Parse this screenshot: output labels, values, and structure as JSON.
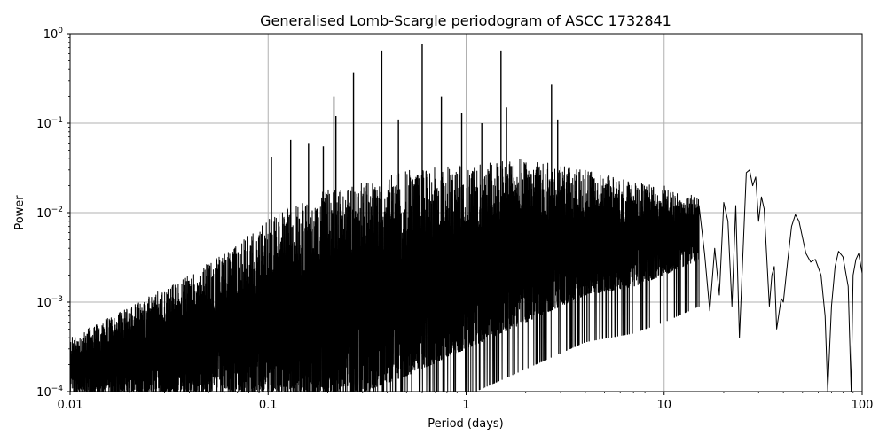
{
  "chart_data": {
    "type": "line",
    "title": "Generalised Lomb-Scargle periodogram of ASCC 1732841",
    "xlabel": "Period (days)",
    "ylabel": "Power",
    "xscale": "log",
    "yscale": "log",
    "xlim": [
      0.01,
      100
    ],
    "ylim": [
      0.0001,
      1
    ],
    "grid": true,
    "x_ticks": [
      {
        "value": 0.01,
        "label": "0.01"
      },
      {
        "value": 0.1,
        "label": "0.1"
      },
      {
        "value": 1,
        "label": "1"
      },
      {
        "value": 10,
        "label": "10"
      },
      {
        "value": 100,
        "label": "100"
      }
    ],
    "y_ticks": [
      {
        "value": 0.0001,
        "base": "10",
        "exp": "−4"
      },
      {
        "value": 0.001,
        "base": "10",
        "exp": "−3"
      },
      {
        "value": 0.01,
        "base": "10",
        "exp": "−2"
      },
      {
        "value": 0.1,
        "base": "10",
        "exp": "−1"
      },
      {
        "value": 1,
        "base": "10",
        "exp": "0"
      }
    ],
    "series": [
      {
        "color": "#000000",
        "peaks": [
          {
            "period": 0.104,
            "power": 0.042
          },
          {
            "period": 0.13,
            "power": 0.065
          },
          {
            "period": 0.16,
            "power": 0.06
          },
          {
            "period": 0.19,
            "power": 0.055
          },
          {
            "period": 0.215,
            "power": 0.2
          },
          {
            "period": 0.22,
            "power": 0.12
          },
          {
            "period": 0.27,
            "power": 0.37
          },
          {
            "period": 0.375,
            "power": 0.65
          },
          {
            "period": 0.455,
            "power": 0.11
          },
          {
            "period": 0.6,
            "power": 0.76
          },
          {
            "period": 0.75,
            "power": 0.2
          },
          {
            "period": 0.95,
            "power": 0.13
          },
          {
            "period": 1.2,
            "power": 0.1
          },
          {
            "period": 1.5,
            "power": 0.65
          },
          {
            "period": 1.6,
            "power": 0.15
          },
          {
            "period": 2.7,
            "power": 0.27
          },
          {
            "period": 2.9,
            "power": 0.11
          }
        ],
        "upper_envelope": [
          [
            0.01,
            0.0004
          ],
          [
            0.02,
            0.0009
          ],
          [
            0.04,
            0.002
          ],
          [
            0.07,
            0.0045
          ],
          [
            0.1,
            0.009
          ],
          [
            0.2,
            0.018
          ],
          [
            0.5,
            0.03
          ],
          [
            1,
            0.035
          ],
          [
            2,
            0.04
          ],
          [
            4,
            0.03
          ],
          [
            7,
            0.022
          ],
          [
            10,
            0.02
          ],
          [
            15,
            0.015
          ]
        ],
        "lower_envelope": [
          [
            0.01,
            0.0001
          ],
          [
            0.1,
            0.0001
          ],
          [
            0.3,
            0.0001
          ],
          [
            0.5,
            0.00015
          ],
          [
            1,
            0.0003
          ],
          [
            2,
            0.0006
          ],
          [
            4,
            0.0012
          ],
          [
            7,
            0.0015
          ],
          [
            10,
            0.002
          ],
          [
            15,
            0.003
          ]
        ],
        "smooth_tail": [
          [
            15,
            0.012
          ],
          [
            16,
            0.0035
          ],
          [
            17,
            0.0008
          ],
          [
            18,
            0.004
          ],
          [
            19,
            0.0012
          ],
          [
            20,
            0.013
          ],
          [
            21,
            0.008
          ],
          [
            22,
            0.0009
          ],
          [
            23,
            0.012
          ],
          [
            24,
            0.0004
          ],
          [
            26,
            0.028
          ],
          [
            27,
            0.03
          ],
          [
            28,
            0.02
          ],
          [
            29,
            0.025
          ],
          [
            30,
            0.008
          ],
          [
            31,
            0.015
          ],
          [
            32,
            0.011
          ],
          [
            34,
            0.0009
          ],
          [
            35,
            0.002
          ],
          [
            36,
            0.0025
          ],
          [
            37,
            0.0005
          ],
          [
            39,
            0.0011
          ],
          [
            40,
            0.001
          ],
          [
            42,
            0.0028
          ],
          [
            44,
            0.007
          ],
          [
            46,
            0.0095
          ],
          [
            48,
            0.008
          ],
          [
            52,
            0.0035
          ],
          [
            55,
            0.0028
          ],
          [
            58,
            0.003
          ],
          [
            62,
            0.002
          ],
          [
            65,
            0.0007
          ],
          [
            67,
            0.0001
          ],
          [
            70,
            0.0009
          ],
          [
            73,
            0.0025
          ],
          [
            76,
            0.0037
          ],
          [
            80,
            0.0032
          ],
          [
            85,
            0.0015
          ],
          [
            88,
            0.0001
          ],
          [
            90,
            0.002
          ],
          [
            93,
            0.003
          ],
          [
            96,
            0.0035
          ],
          [
            100,
            0.0021
          ]
        ]
      }
    ]
  }
}
